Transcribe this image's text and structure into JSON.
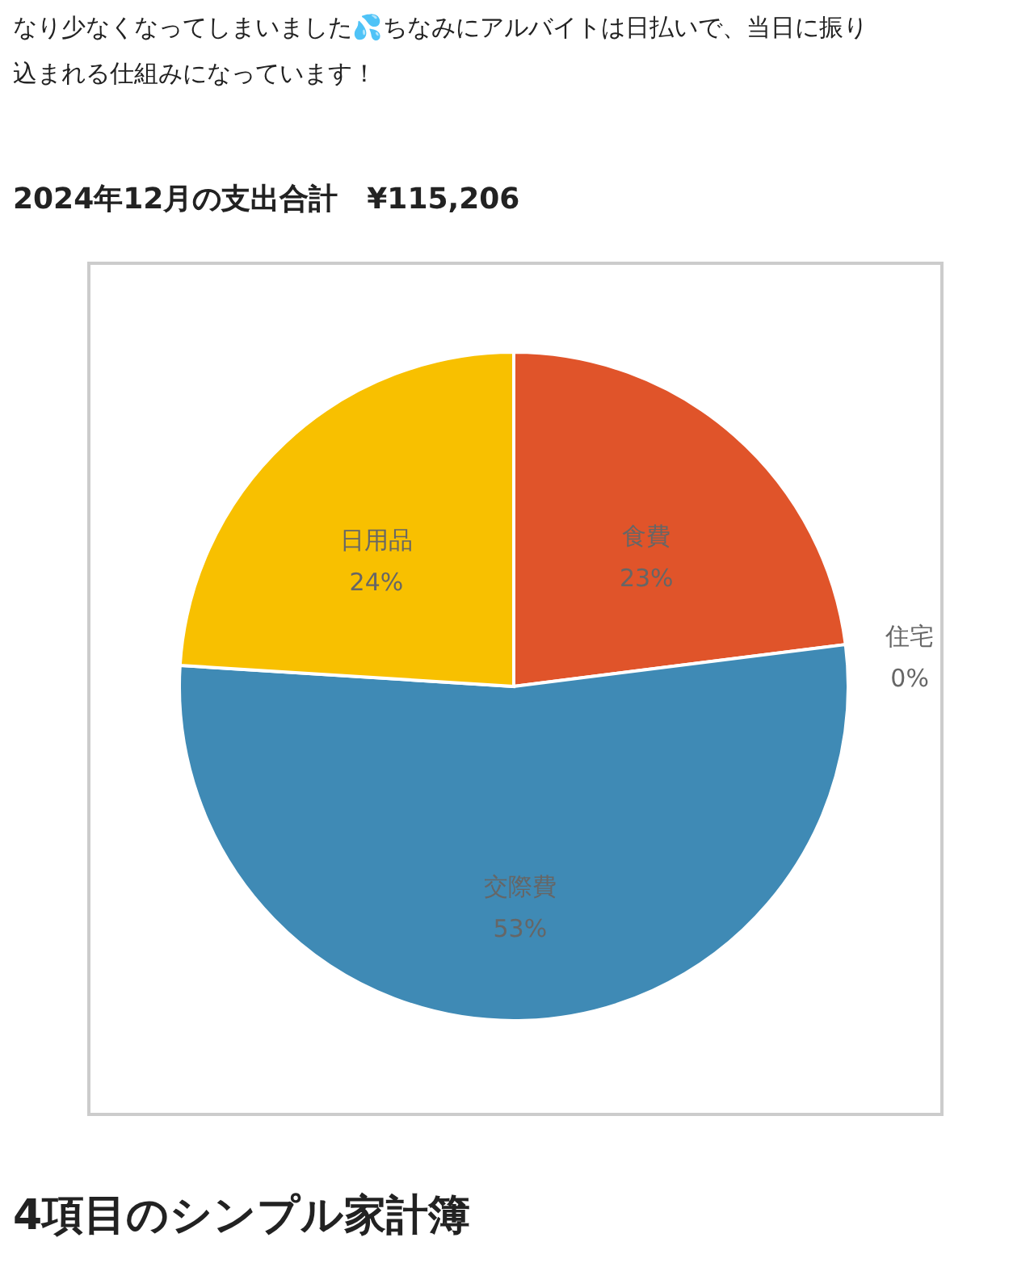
{
  "chart_data": {
    "type": "pie",
    "title": "2024年12月の支出合計　¥115,206",
    "categories": [
      "食費",
      "住宅",
      "交際費",
      "日用品"
    ],
    "values": [
      23,
      0,
      53,
      24
    ],
    "value_labels": [
      "23%",
      "0%",
      "53%",
      "24%"
    ],
    "colors": [
      "#e0542a",
      "#a5a5a5",
      "#3f8ab5",
      "#f8c000"
    ],
    "annotations": [
      "なり少なくなってしまいました💦ちなみにアルバイトは日払いで、当日に振り込まれる仕組みになっています！",
      "4項目のシンプル家計簿"
    ]
  }
}
